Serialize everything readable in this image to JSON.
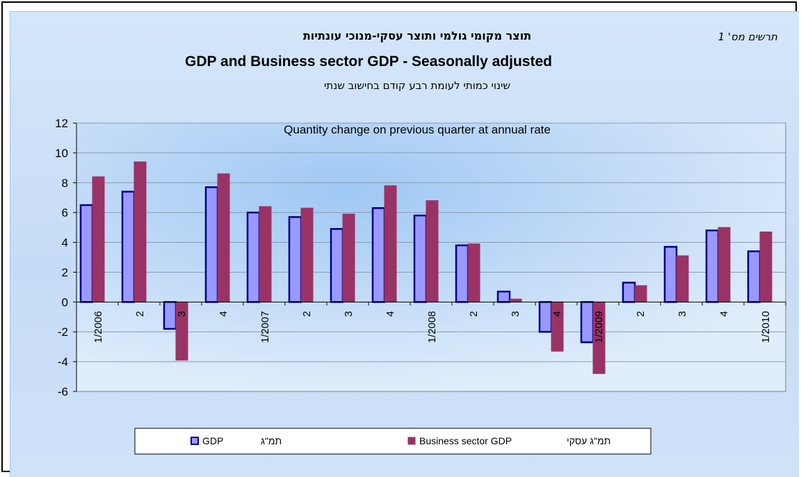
{
  "figure_label": "תרשים מס' 1",
  "title_he": "תוצר מקומי גולמי ותוצר עסקי-מנוכי עונתיות",
  "title_en": "GDP and Business sector GDP - Seasonally adjusted",
  "subtitle_he": "שינוי כמותי לעומת רבע קודם בחישוב שנתי",
  "chart_data": {
    "type": "bar",
    "title": "Quantity change on previous quarter at annual rate",
    "categories": [
      "1/2006",
      "2",
      "3",
      "4",
      "1/2007",
      "2",
      "3",
      "4",
      "1/2008",
      "2",
      "3",
      "4",
      "1/2009",
      "2",
      "3",
      "4",
      "1/2010"
    ],
    "series": [
      {
        "name": "GDP",
        "name_he": "תמ\"ג",
        "color": "#9999ff",
        "border": "#000080",
        "values": [
          6.5,
          7.4,
          -1.8,
          7.7,
          6.0,
          5.7,
          4.9,
          6.3,
          5.8,
          3.8,
          0.7,
          -2.0,
          -2.7,
          1.3,
          3.7,
          4.8,
          3.4
        ]
      },
      {
        "name": "Business sector GDP",
        "name_he": "תמ\"ג עסקי",
        "color": "#993366",
        "border": "#993366",
        "values": [
          8.4,
          9.4,
          -3.9,
          8.6,
          6.4,
          6.3,
          5.9,
          7.8,
          6.8,
          3.9,
          0.2,
          -3.3,
          -4.8,
          1.1,
          3.1,
          5.0,
          4.7
        ]
      }
    ],
    "ylim": [
      -6,
      12
    ],
    "yticks": [
      -6,
      -4,
      -2,
      0,
      2,
      4,
      6,
      8,
      10,
      12
    ],
    "grid": true,
    "legend": "bottom"
  }
}
